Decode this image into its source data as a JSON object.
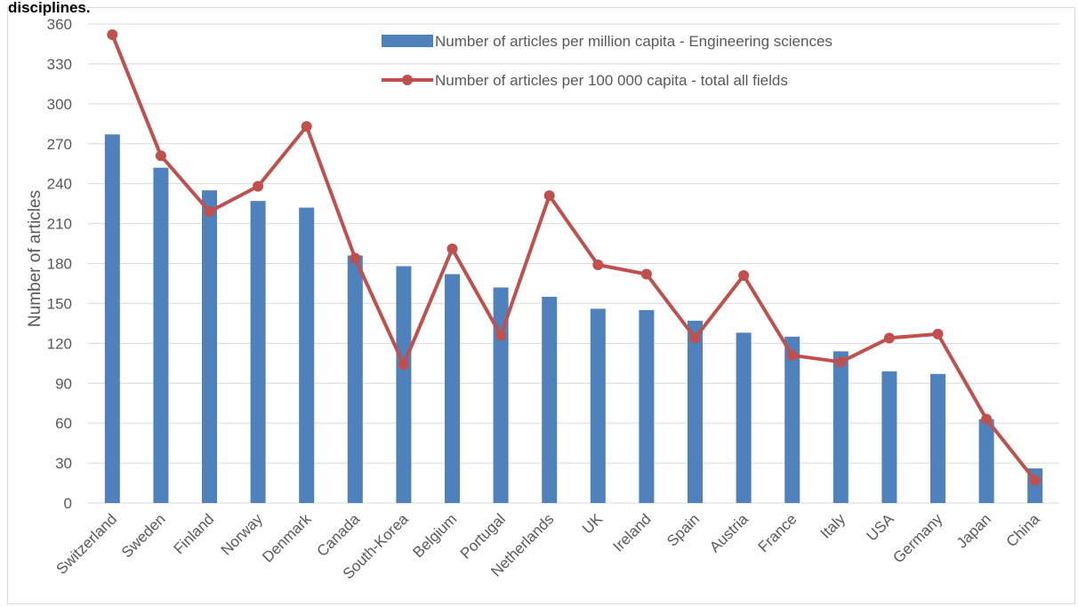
{
  "page": {
    "clipped_title": "disciplines."
  },
  "chart_data": {
    "type": "bar",
    "title": "",
    "xlabel": "",
    "ylabel": "Number of articles",
    "ylim": [
      0,
      360
    ],
    "yticks": [
      0,
      30,
      60,
      90,
      120,
      150,
      180,
      210,
      240,
      270,
      300,
      330,
      360
    ],
    "grid": "horizontal",
    "legend_position": "top-right",
    "categories": [
      "Switzerland",
      "Sweden",
      "Finland",
      "Norway",
      "Denmark",
      "Canada",
      "South-Korea",
      "Belgium",
      "Portugal",
      "Netherlands",
      "UK",
      "Ireland",
      "Spain",
      "Austria",
      "France",
      "Italy",
      "USA",
      "Germany",
      "Japan",
      "China"
    ],
    "series": [
      {
        "name": "Number of articles per million capita - Engineering sciences",
        "type": "bar",
        "color": "#4f81bd",
        "values": [
          277,
          252,
          235,
          227,
          222,
          186,
          178,
          172,
          162,
          155,
          146,
          145,
          137,
          128,
          125,
          114,
          99,
          97,
          63,
          26
        ]
      },
      {
        "name": "Number of articles per 100 000 capita - total all fields",
        "type": "line",
        "color": "#c0504d",
        "values": [
          352,
          261,
          219,
          238,
          283,
          184,
          104,
          191,
          126,
          231,
          179,
          172,
          124,
          171,
          111,
          106,
          124,
          127,
          63,
          17
        ]
      }
    ]
  }
}
